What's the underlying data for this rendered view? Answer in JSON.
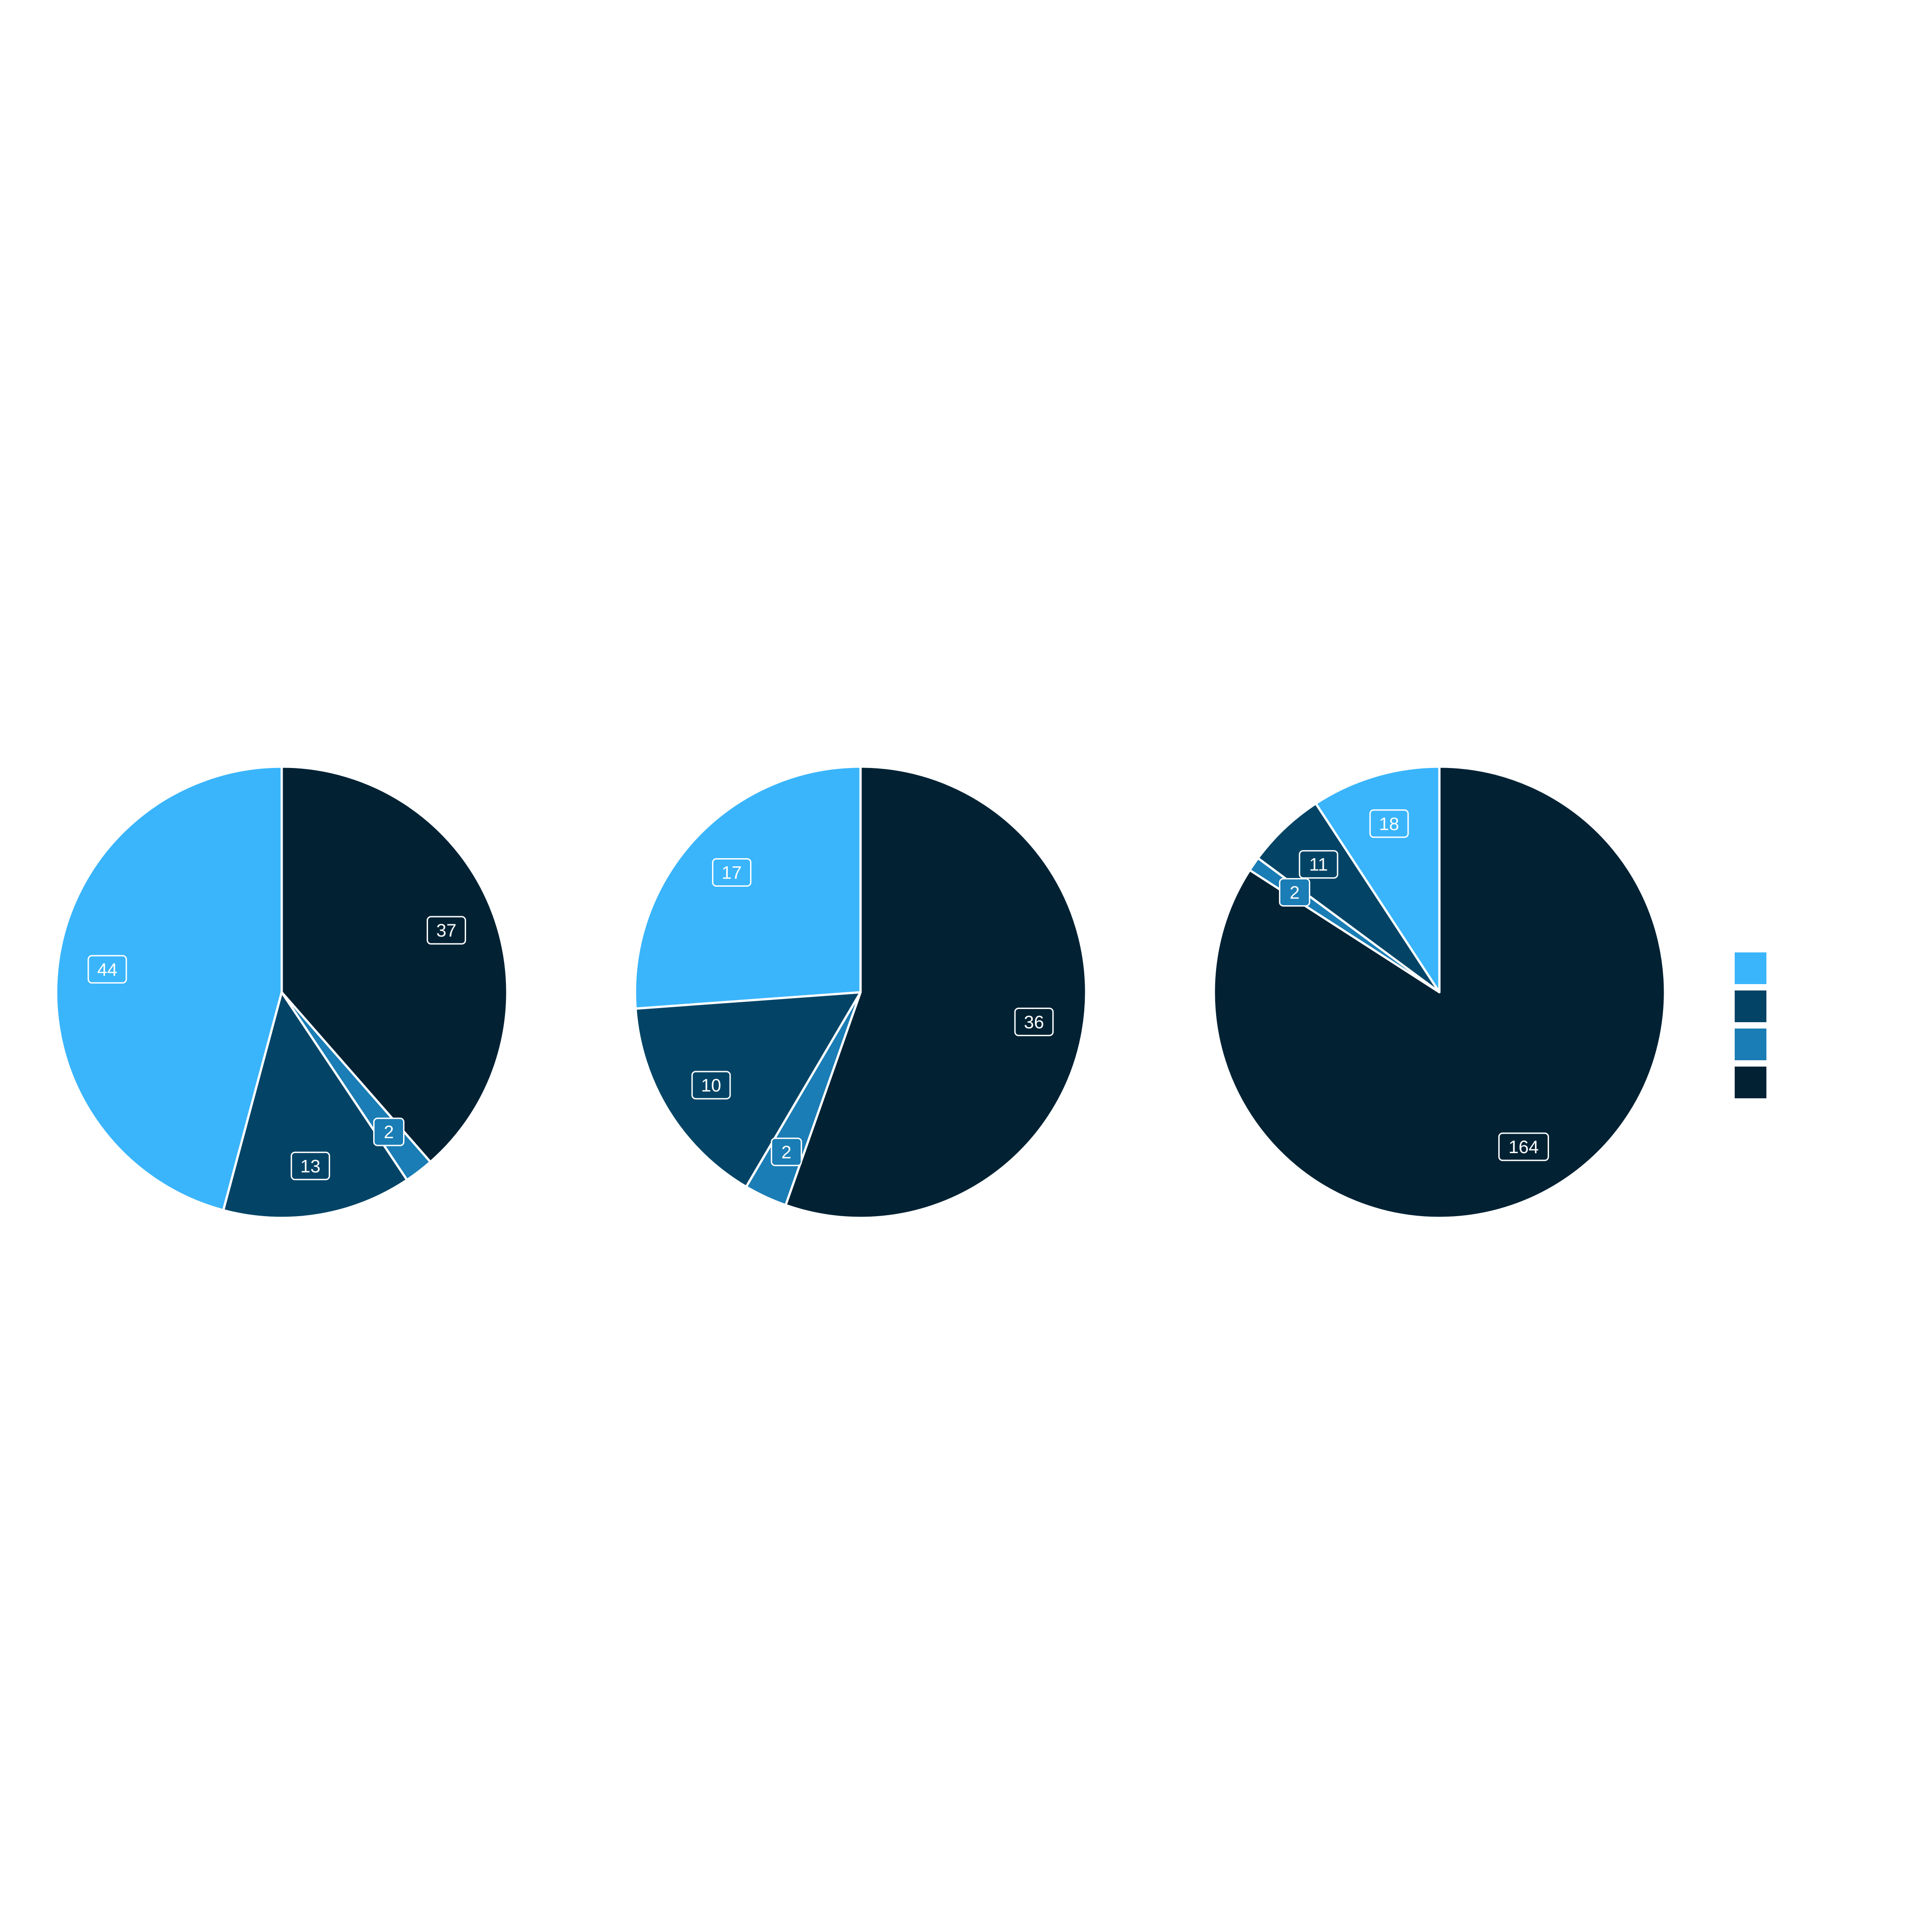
{
  "chart_data": [
    {
      "type": "pie",
      "title": "",
      "categories": [
        "",
        "",
        "",
        ""
      ],
      "colors": [
        "#3AB5FC",
        "#034466",
        "#1A7DB5",
        "#022234"
      ],
      "values": [
        44,
        13,
        2,
        37
      ],
      "start_angle_deg": 0,
      "direction": "counterclockwise"
    },
    {
      "type": "pie",
      "title": "",
      "categories": [
        "",
        "",
        "",
        ""
      ],
      "colors": [
        "#3AB5FC",
        "#034466",
        "#1A7DB5",
        "#022234"
      ],
      "values": [
        17,
        10,
        2,
        36
      ],
      "start_angle_deg": 0,
      "direction": "counterclockwise"
    },
    {
      "type": "pie",
      "title": "",
      "categories": [
        "",
        "",
        "",
        ""
      ],
      "colors": [
        "#3AB5FC",
        "#034466",
        "#1A7DB5",
        "#022234"
      ],
      "values": [
        18,
        11,
        2,
        164
      ],
      "start_angle_deg": 0,
      "direction": "counterclockwise"
    }
  ],
  "legend": {
    "placement": "right",
    "colors": [
      "#3AB5FC",
      "#034466",
      "#1A7DB5",
      "#022234"
    ]
  },
  "slice_border_color": "#ffffff",
  "label_style": {
    "text_color": "#ffffff",
    "border_color": "#ffffff"
  }
}
